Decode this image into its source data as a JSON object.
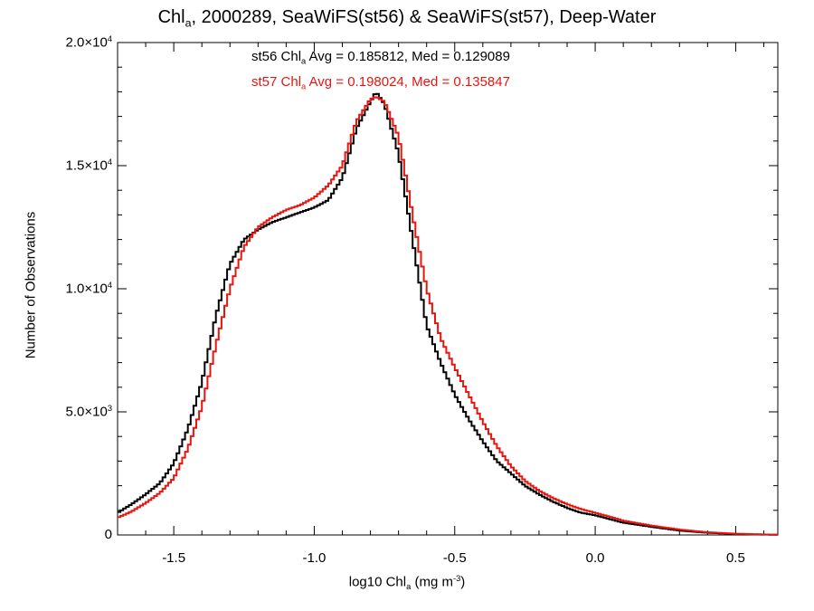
{
  "title": {
    "prefix": "Chl",
    "sub": "a",
    "rest": ", 2000289, SeaWiFS(st56) & SeaWiFS(st57), Deep-Water"
  },
  "annotations": {
    "st56": {
      "label": "st56 Chl",
      "sub": "a",
      "text": " Avg = 0.185812, Med = 0.129089",
      "color": "#000000"
    },
    "st57": {
      "label": "st57 Chl",
      "sub": "a",
      "text": " Avg = 0.198024, Med = 0.135847",
      "color": "#e8150f"
    }
  },
  "axes": {
    "xlabel": {
      "prefix": "log10 Chl",
      "sub": "a",
      "mid": " (mg m",
      "sup": "-3",
      "suffix": ")"
    },
    "ylabel": "Number of Observations"
  },
  "chart_data": {
    "type": "line",
    "xlim": [
      -1.7,
      0.65
    ],
    "ylim": [
      0,
      20000
    ],
    "xticks": [
      {
        "value": -1.5,
        "label": "-1.5"
      },
      {
        "value": -1.0,
        "label": "-1.0"
      },
      {
        "value": -0.5,
        "label": "-0.5"
      },
      {
        "value": 0.0,
        "label": "0.0"
      },
      {
        "value": 0.5,
        "label": "0.5"
      }
    ],
    "yticks": [
      {
        "value": 0,
        "mant": "0",
        "exp": ""
      },
      {
        "value": 5000,
        "mant": "5.0×10",
        "exp": "3"
      },
      {
        "value": 10000,
        "mant": "1.0×10",
        "exp": "4"
      },
      {
        "value": 15000,
        "mant": "1.5×10",
        "exp": "4"
      },
      {
        "value": 20000,
        "mant": "2.0×10",
        "exp": "4"
      }
    ],
    "grid": false,
    "step": true,
    "series": [
      {
        "name": "st56",
        "color": "#000000",
        "x": [
          -1.7,
          -1.65,
          -1.6,
          -1.55,
          -1.5,
          -1.45,
          -1.4,
          -1.35,
          -1.3,
          -1.25,
          -1.2,
          -1.15,
          -1.1,
          -1.05,
          -1.0,
          -0.95,
          -0.9,
          -0.85,
          -0.8,
          -0.78,
          -0.75,
          -0.7,
          -0.65,
          -0.6,
          -0.55,
          -0.5,
          -0.45,
          -0.4,
          -0.35,
          -0.3,
          -0.25,
          -0.2,
          -0.15,
          -0.1,
          -0.05,
          0.0,
          0.05,
          0.1,
          0.2,
          0.3,
          0.4,
          0.5,
          0.6,
          0.65
        ],
        "y": [
          900,
          1250,
          1650,
          2100,
          2900,
          4300,
          6200,
          8900,
          11000,
          12000,
          12400,
          12700,
          12900,
          13100,
          13300,
          13600,
          14500,
          16500,
          17600,
          18000,
          17500,
          15500,
          12000,
          8500,
          7000,
          5700,
          4700,
          3800,
          3000,
          2500,
          2000,
          1650,
          1350,
          1100,
          900,
          800,
          650,
          500,
          330,
          180,
          90,
          40,
          15,
          10
        ]
      },
      {
        "name": "st57",
        "color": "#e8150f",
        "x": [
          -1.7,
          -1.65,
          -1.6,
          -1.55,
          -1.5,
          -1.45,
          -1.4,
          -1.35,
          -1.3,
          -1.25,
          -1.2,
          -1.15,
          -1.1,
          -1.05,
          -1.0,
          -0.95,
          -0.9,
          -0.85,
          -0.8,
          -0.78,
          -0.75,
          -0.7,
          -0.65,
          -0.6,
          -0.55,
          -0.5,
          -0.45,
          -0.4,
          -0.35,
          -0.3,
          -0.25,
          -0.2,
          -0.15,
          -0.1,
          -0.05,
          0.0,
          0.05,
          0.1,
          0.2,
          0.3,
          0.4,
          0.5,
          0.6,
          0.65
        ],
        "y": [
          700,
          950,
          1300,
          1700,
          2300,
          3500,
          5200,
          7700,
          10000,
          11700,
          12500,
          12900,
          13200,
          13400,
          13700,
          14200,
          15000,
          16800,
          17700,
          17800,
          17600,
          16200,
          13000,
          10000,
          8000,
          6800,
          5700,
          4600,
          3600,
          2800,
          2200,
          1800,
          1500,
          1250,
          1050,
          900,
          750,
          580,
          380,
          220,
          110,
          50,
          20,
          10
        ]
      }
    ]
  }
}
